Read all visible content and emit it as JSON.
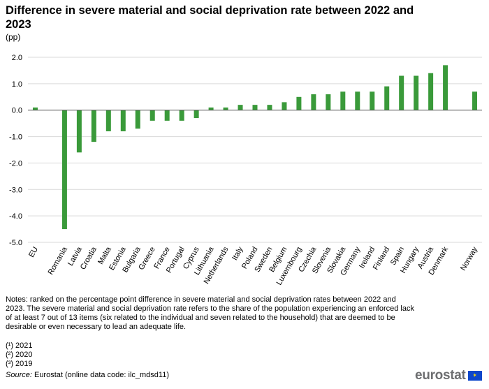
{
  "title": "Difference in severe material and social deprivation rate between 2022 and 2023",
  "unit": "(pp)",
  "colors": {
    "bar": "#3a9a3a",
    "grid": "#d9d9d9",
    "axis": "#555555"
  },
  "chart_data": {
    "type": "bar",
    "title": "Difference in severe material and social deprivation rate between 2022 and 2023",
    "xlabel": "",
    "ylabel": "(pp)",
    "ylim": [
      -5.0,
      2.0
    ],
    "yticks": [
      "2.0",
      "1.0",
      "0.0",
      "-1.0",
      "-2.0",
      "-3.0",
      "-4.0",
      "-5.0"
    ],
    "grid": true,
    "categories": [
      "EU",
      "",
      "Romania",
      "Latvia",
      "Croatia",
      "Malta",
      "Estonia",
      "Bulgaria",
      "Greece",
      "France",
      "Portugal",
      "Cyprus",
      "Lithuania",
      "Netherlands",
      "Italy",
      "Poland",
      "Sweden",
      "Belgium",
      "Luxembourg",
      "Czechia",
      "Slovenia",
      "Slovakia",
      "Germany",
      "Ireland",
      "Finland",
      "Spain",
      "Hungary",
      "Austria",
      "Denmark",
      "",
      "Norway"
    ],
    "values": [
      0.1,
      null,
      -4.5,
      -1.6,
      -1.2,
      -0.8,
      -0.8,
      -0.7,
      -0.4,
      -0.4,
      -0.4,
      -0.3,
      0.1,
      0.1,
      0.2,
      0.2,
      0.2,
      0.3,
      0.5,
      0.6,
      0.6,
      0.7,
      0.7,
      0.7,
      0.9,
      1.3,
      1.3,
      1.4,
      1.7,
      null,
      0.7
    ]
  },
  "notes": {
    "text": "Notes: ranked on the percentage point difference in severe material and social deprivation rates between 2022 and 2023. The severe material and social deprivation rate refers to the share of the population experiencing an enforced lack of at least 7 out of 13 items (six related to the individual and seven related to the household) that are deemed to be desirable or even necessary to lead an adequate life.",
    "footnotes": [
      "(¹) 2021",
      "(²) 2020",
      "(³) 2019"
    ]
  },
  "source": {
    "label": "Source:",
    "text": " Eurostat (online data code: ilc_mdsd11)"
  },
  "logo": {
    "text": "eurostat",
    "flag_glyph": "✶"
  }
}
